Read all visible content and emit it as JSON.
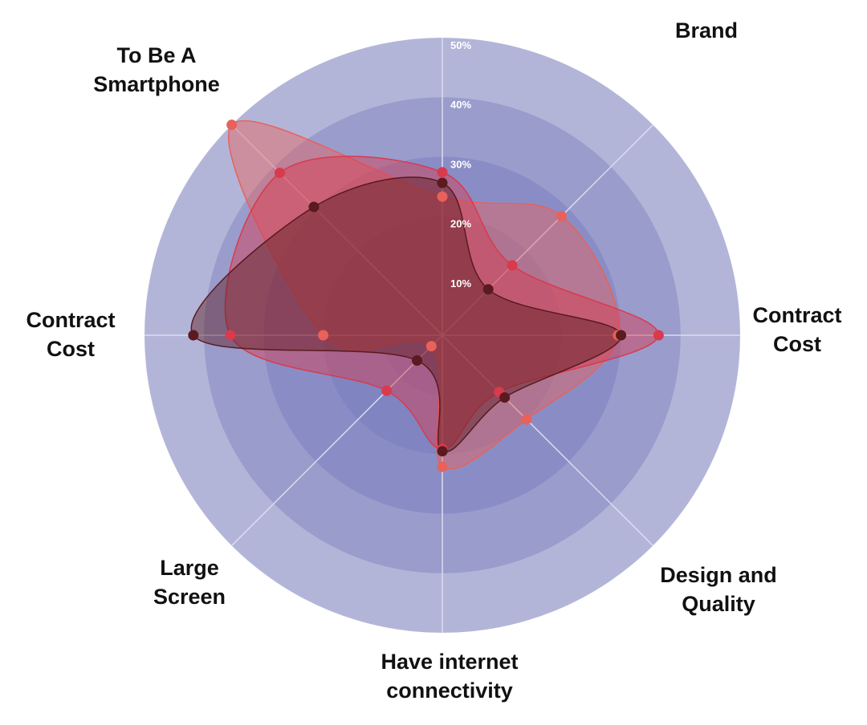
{
  "chart_data": {
    "type": "radar",
    "categories": [
      null,
      "Brand",
      "Contract Cost",
      "Design and Quality",
      "Have internet connectivity",
      "Large Screen",
      "Contract Cost",
      "To Be A Smartphone"
    ],
    "series": [
      {
        "color": "#e8615a",
        "values": [
          23.3,
          28.3,
          29.5,
          20,
          22.1,
          2.6,
          20,
          50
        ]
      },
      {
        "color": "#d93a4c",
        "values": [
          27.4,
          16.6,
          36.3,
          13.5,
          19.1,
          13.2,
          35.6,
          38.6
        ]
      },
      {
        "color": "#5a1a1f",
        "values": [
          25.6,
          10.9,
          30,
          14.8,
          19.5,
          6,
          41.8,
          30.5
        ]
      }
    ],
    "ylim": [
      0,
      50
    ],
    "yticks": [
      {
        "value": 10,
        "label": "10%"
      },
      {
        "value": 20,
        "label": "20%"
      },
      {
        "value": 30,
        "label": "30%"
      },
      {
        "value": 40,
        "label": "40%"
      },
      {
        "value": 50,
        "label": "50%"
      }
    ],
    "grid": true
  }
}
